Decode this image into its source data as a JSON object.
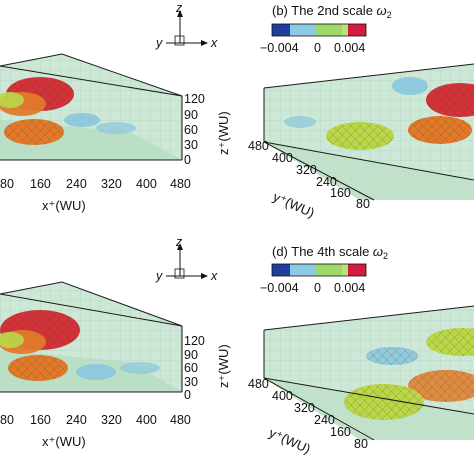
{
  "panel_b": {
    "title_prefix": "(b) The 2nd scale ",
    "omega": "ω",
    "sub": "2",
    "colorbar_ticks": [
      "−0.004",
      "0",
      "0.004"
    ],
    "colorbar_colors": [
      "#1f3f9f",
      "#8cc9e6",
      "#9ed86a",
      "#b8e27d",
      "#d21e3c"
    ]
  },
  "panel_d": {
    "title_prefix": "(d) The 4th scale ",
    "omega": "ω",
    "sub": "2",
    "colorbar_ticks": [
      "−0.004",
      "0",
      "0.004"
    ],
    "colorbar_colors": [
      "#1f3f9f",
      "#8cc9e6",
      "#9ed86a",
      "#b8e27d",
      "#d21e3c"
    ]
  },
  "triad": {
    "z": "z",
    "y": "y",
    "x": "x"
  },
  "left_panels": {
    "z_ticks": [
      "120",
      "90",
      "60",
      "30",
      "0"
    ],
    "z_label": "z⁺(WU)",
    "x_ticks_top": [
      "80",
      "160",
      "240",
      "320",
      "400",
      "480"
    ],
    "x_ticks_bottom": [
      "80",
      "160",
      "240",
      "320",
      "400",
      "480"
    ],
    "x_label": "x⁺(WU)"
  },
  "right_panels": {
    "y_ticks_top": [
      "480",
      "400",
      "320",
      "240",
      "160",
      "80"
    ],
    "y_ticks_bottom": [
      "480",
      "400",
      "320",
      "240",
      "160",
      "80"
    ],
    "y_label": "y⁺(WU)"
  },
  "colors": {
    "box_face": "#b9dcc6",
    "box_edge": "#1a1a1a",
    "blob_red": "#d2323a",
    "blob_orange": "#e07a2a",
    "blob_green": "#b8d84a",
    "blob_blue": "#8ac6de"
  }
}
